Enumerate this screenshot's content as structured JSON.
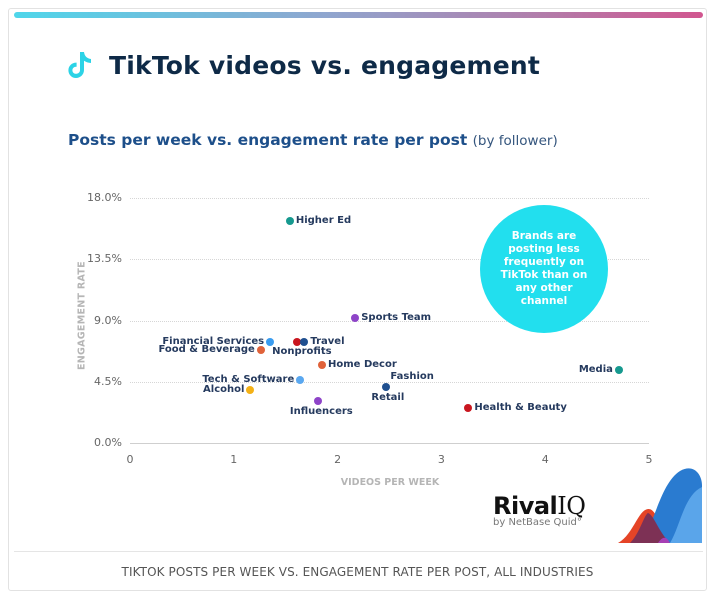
{
  "header": {
    "title": "TikTok videos vs. engagement",
    "icon": "tiktok-icon",
    "gradient_colors": [
      "#4fd6ea",
      "#d1568f"
    ]
  },
  "subtitle": {
    "main": "Posts per week vs. engagement rate per post",
    "paren": "(by follower)"
  },
  "callout": {
    "text": "Brands are posting less frequently on TikTok than on any other channel",
    "color": "#22dfee"
  },
  "logo": {
    "name_bold": "Rival",
    "name_light": "IQ",
    "tagline": "by NetBase Quid°"
  },
  "caption": "TIKTOK POSTS PER WEEK VS. ENGAGEMENT RATE PER POST, ALL INDUSTRIES",
  "chart_data": {
    "type": "scatter",
    "title": "Posts per week vs. engagement rate per post (by follower)",
    "xlabel": "VIDEOS PER WEEK",
    "ylabel": "ENGAGEMENT RATE",
    "xlim": [
      0,
      5
    ],
    "ylim": [
      0,
      18
    ],
    "x_ticks": [
      "0",
      "1",
      "2",
      "3",
      "4",
      "5"
    ],
    "y_ticks": [
      "0.0%",
      "4.5%",
      "9.0%",
      "13.5%",
      "18.0%"
    ],
    "grid": true,
    "points": [
      {
        "label": "Higher Ed",
        "x": 1.54,
        "y": 16.3,
        "color": "#16998f"
      },
      {
        "label": "Sports Team",
        "x": 2.17,
        "y": 9.2,
        "color": "#8e44c8"
      },
      {
        "label": "Financial Services",
        "x": 1.35,
        "y": 7.4,
        "color": "#3a9cf0"
      },
      {
        "label": "Nonprofits",
        "x": 1.61,
        "y": 7.4,
        "color": "#c9161f"
      },
      {
        "label": "Travel",
        "x": 1.68,
        "y": 7.4,
        "color": "#1f4f8f"
      },
      {
        "label": "Food & Beverage",
        "x": 1.26,
        "y": 6.8,
        "color": "#e0623a"
      },
      {
        "label": "Home Decor",
        "x": 1.85,
        "y": 5.7,
        "color": "#e0623a"
      },
      {
        "label": "Tech & Software",
        "x": 1.64,
        "y": 4.6,
        "color": "#5aa8f0"
      },
      {
        "label": "Alcohol",
        "x": 1.16,
        "y": 3.9,
        "color": "#f4b116"
      },
      {
        "label": "Fashion",
        "x": 2.47,
        "y": 4.1,
        "color": "#1f4f8f"
      },
      {
        "label": "Retail",
        "x": 2.47,
        "y": 4.1,
        "color": "#1f4f8f"
      },
      {
        "label": "Influencers",
        "x": 1.81,
        "y": 3.1,
        "color": "#8e44c8"
      },
      {
        "label": "Health & Beauty",
        "x": 3.26,
        "y": 2.6,
        "color": "#c9161f"
      },
      {
        "label": "Media",
        "x": 4.71,
        "y": 5.4,
        "color": "#16998f"
      }
    ]
  }
}
